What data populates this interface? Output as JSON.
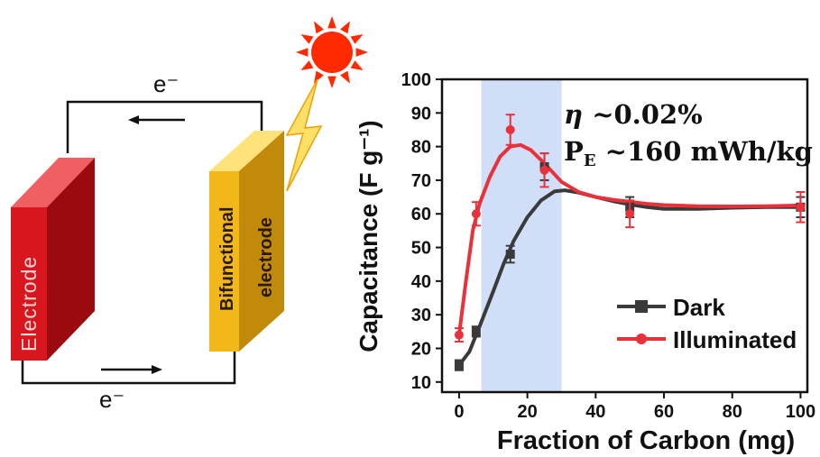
{
  "diagram": {
    "electron_label": "e⁻",
    "electrode_label": "Electrode",
    "bifunctional_line1": "Bifunctional",
    "bifunctional_line2": "electrode",
    "icons": [
      "sun-icon",
      "lightning-icon"
    ],
    "colors": {
      "electrode": "#d8161d",
      "bifunctional": "#f2b719",
      "sun": "#ff2a00"
    }
  },
  "chart_data": {
    "type": "line",
    "xlabel": "Fraction of Carbon (mg)",
    "ylabel": "Capacitance (F g⁻¹)",
    "xlim": [
      -5,
      102
    ],
    "ylim": [
      7,
      100
    ],
    "xticks": [
      0,
      20,
      40,
      60,
      80,
      100
    ],
    "yticks": [
      10,
      20,
      30,
      40,
      50,
      60,
      70,
      80,
      90,
      100
    ],
    "highlight_region": [
      6.5,
      30
    ],
    "legend_position": "bottom-right",
    "annotations": {
      "eta_symbol": "η",
      "eta_value": " ~0.02%",
      "pe_main": "P",
      "pe_sub": "E",
      "pe_value": " ~160 mWh/kg"
    },
    "series": [
      {
        "name": "Dark",
        "color": "#3a3a3a",
        "marker": "square",
        "x": [
          0,
          5,
          15,
          25,
          50,
          100
        ],
        "y": [
          15,
          25,
          48,
          74,
          62,
          62
        ],
        "err": [
          1.5,
          1.5,
          2.5,
          4,
          3,
          3
        ],
        "curve": [
          [
            0,
            15
          ],
          [
            3,
            19
          ],
          [
            6,
            26.5
          ],
          [
            10,
            37
          ],
          [
            13,
            45
          ],
          [
            16,
            52
          ],
          [
            20,
            59
          ],
          [
            24,
            64
          ],
          [
            28,
            66.7
          ],
          [
            31,
            67
          ],
          [
            35,
            66.3
          ],
          [
            40,
            65
          ],
          [
            45,
            63.8
          ],
          [
            50,
            62.8
          ],
          [
            55,
            62
          ],
          [
            60,
            61.5
          ],
          [
            70,
            61.5
          ],
          [
            80,
            61.8
          ],
          [
            90,
            62
          ],
          [
            100,
            62
          ]
        ]
      },
      {
        "name": "Illuminated",
        "color": "#e8313a",
        "marker": "circle",
        "x": [
          0,
          5,
          15,
          25,
          50,
          100
        ],
        "y": [
          24,
          60,
          85,
          73,
          60,
          62
        ],
        "err": [
          2,
          3.5,
          4.5,
          5,
          4,
          4.5
        ],
        "curve": [
          [
            0,
            24
          ],
          [
            2,
            40
          ],
          [
            4,
            55
          ],
          [
            6,
            63
          ],
          [
            9,
            71
          ],
          [
            12,
            77
          ],
          [
            15,
            80
          ],
          [
            18,
            80.5
          ],
          [
            21,
            79
          ],
          [
            25,
            75
          ],
          [
            30,
            69.5
          ],
          [
            35,
            66.5
          ],
          [
            40,
            65
          ],
          [
            45,
            64.2
          ],
          [
            50,
            63.6
          ],
          [
            55,
            63
          ],
          [
            60,
            62.6
          ],
          [
            70,
            62.3
          ],
          [
            80,
            62.2
          ],
          [
            90,
            62.3
          ],
          [
            100,
            62.5
          ]
        ]
      }
    ]
  }
}
